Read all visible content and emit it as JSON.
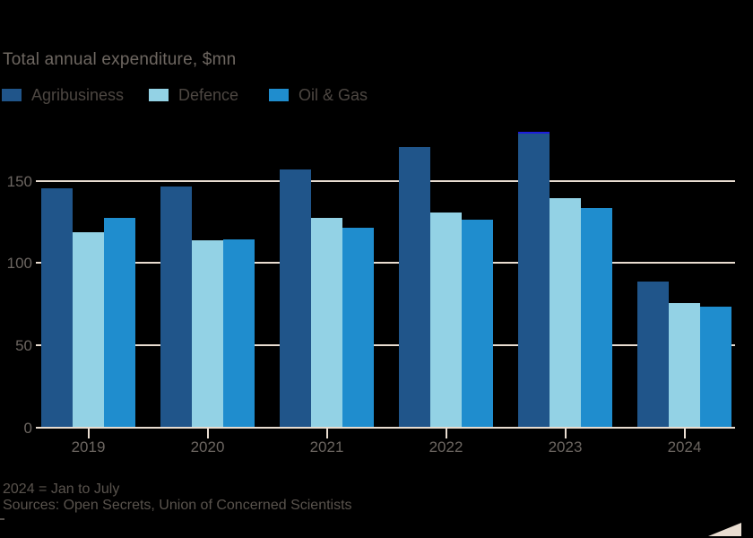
{
  "title": "Total annual expenditure, $mn",
  "chart_data": {
    "type": "bar",
    "title": "Total annual expenditure, $mn",
    "categories": [
      "2019",
      "2020",
      "2021",
      "2022",
      "2023",
      "2024"
    ],
    "series": [
      {
        "name": "Agribusiness",
        "color": "#20558A",
        "values": [
          145,
          146,
          156,
          170,
          178,
          88
        ]
      },
      {
        "name": "Defence",
        "color": "#93D2E5",
        "values": [
          118,
          113,
          127,
          130,
          139,
          75
        ]
      },
      {
        "name": "Oil & Gas",
        "color": "#1F8DCE",
        "values": [
          127,
          114,
          121,
          126,
          133,
          73
        ]
      }
    ],
    "xlabel": "",
    "ylabel": "",
    "yticks": [
      0,
      50,
      100,
      150
    ],
    "ylim": [
      0,
      185
    ],
    "grid": true,
    "legend_position": "top-left",
    "annotations": [
      {
        "type": "bar-top-highlight",
        "category": "2023",
        "series": "Agribusiness",
        "color": "#1E1EDC"
      }
    ]
  },
  "footnotes": {
    "note": "2024 = Jan to July",
    "sources": "Sources: Open Secrets, Union of Concerned Scientists"
  },
  "colors": {
    "background": "#000000",
    "grid": "#E9DDD1",
    "axis_text": "#6B6560",
    "title_text": "#6E6761",
    "legend_text": "#4D4742",
    "footnote_text": "#59534D",
    "corner_triangle": "#E9DDD1"
  }
}
